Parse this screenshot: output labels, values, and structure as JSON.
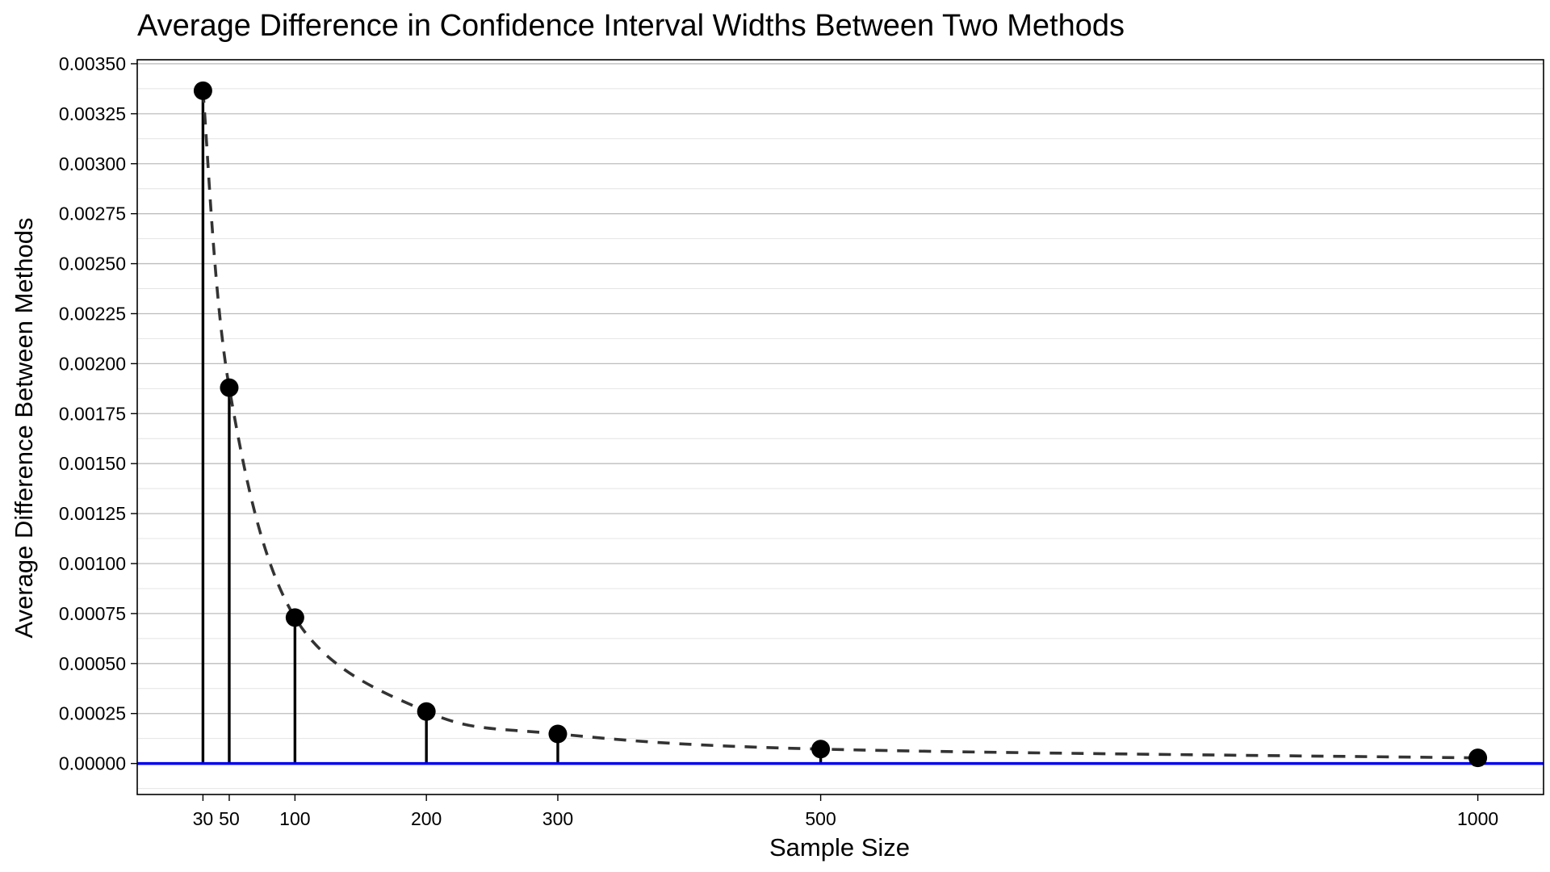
{
  "chart_data": {
    "type": "scatter",
    "title": "Average Difference in Confidence Interval Widths Between Two Methods",
    "xlabel": "Sample Size",
    "ylabel": "Average Difference Between Methods",
    "x": [
      30,
      50,
      100,
      200,
      300,
      500,
      1000
    ],
    "series": [
      {
        "values": [
          0.003365,
          0.00188,
          0.00073,
          0.00026,
          0.000148,
          7.2e-05,
          2.8e-05
        ],
        "style": "points with vertical stems and dashed connecting curve"
      }
    ],
    "x_ticks": [
      30,
      50,
      100,
      200,
      300,
      500,
      1000
    ],
    "x_tick_labels": [
      "30",
      "50",
      "100",
      "200",
      "300",
      "500",
      "1000"
    ],
    "y_ticks": [
      0,
      0.00025,
      0.0005,
      0.00075,
      0.001,
      0.00125,
      0.0015,
      0.00175,
      0.002,
      0.00225,
      0.0025,
      0.00275,
      0.003,
      0.00325,
      0.0035
    ],
    "y_tick_labels": [
      "0.00000",
      "0.00025",
      "0.00050",
      "0.00075",
      "0.00100",
      "0.00125",
      "0.00150",
      "0.00175",
      "0.00200",
      "0.00225",
      "0.00250",
      "0.00275",
      "0.00300",
      "0.00325",
      "0.00350"
    ],
    "xlim": [
      -20,
      1050
    ],
    "ylim": [
      -0.000155,
      0.00352
    ],
    "reference_line": {
      "y": 0,
      "color": "#0000ee"
    },
    "grid": true,
    "legend": "none"
  }
}
